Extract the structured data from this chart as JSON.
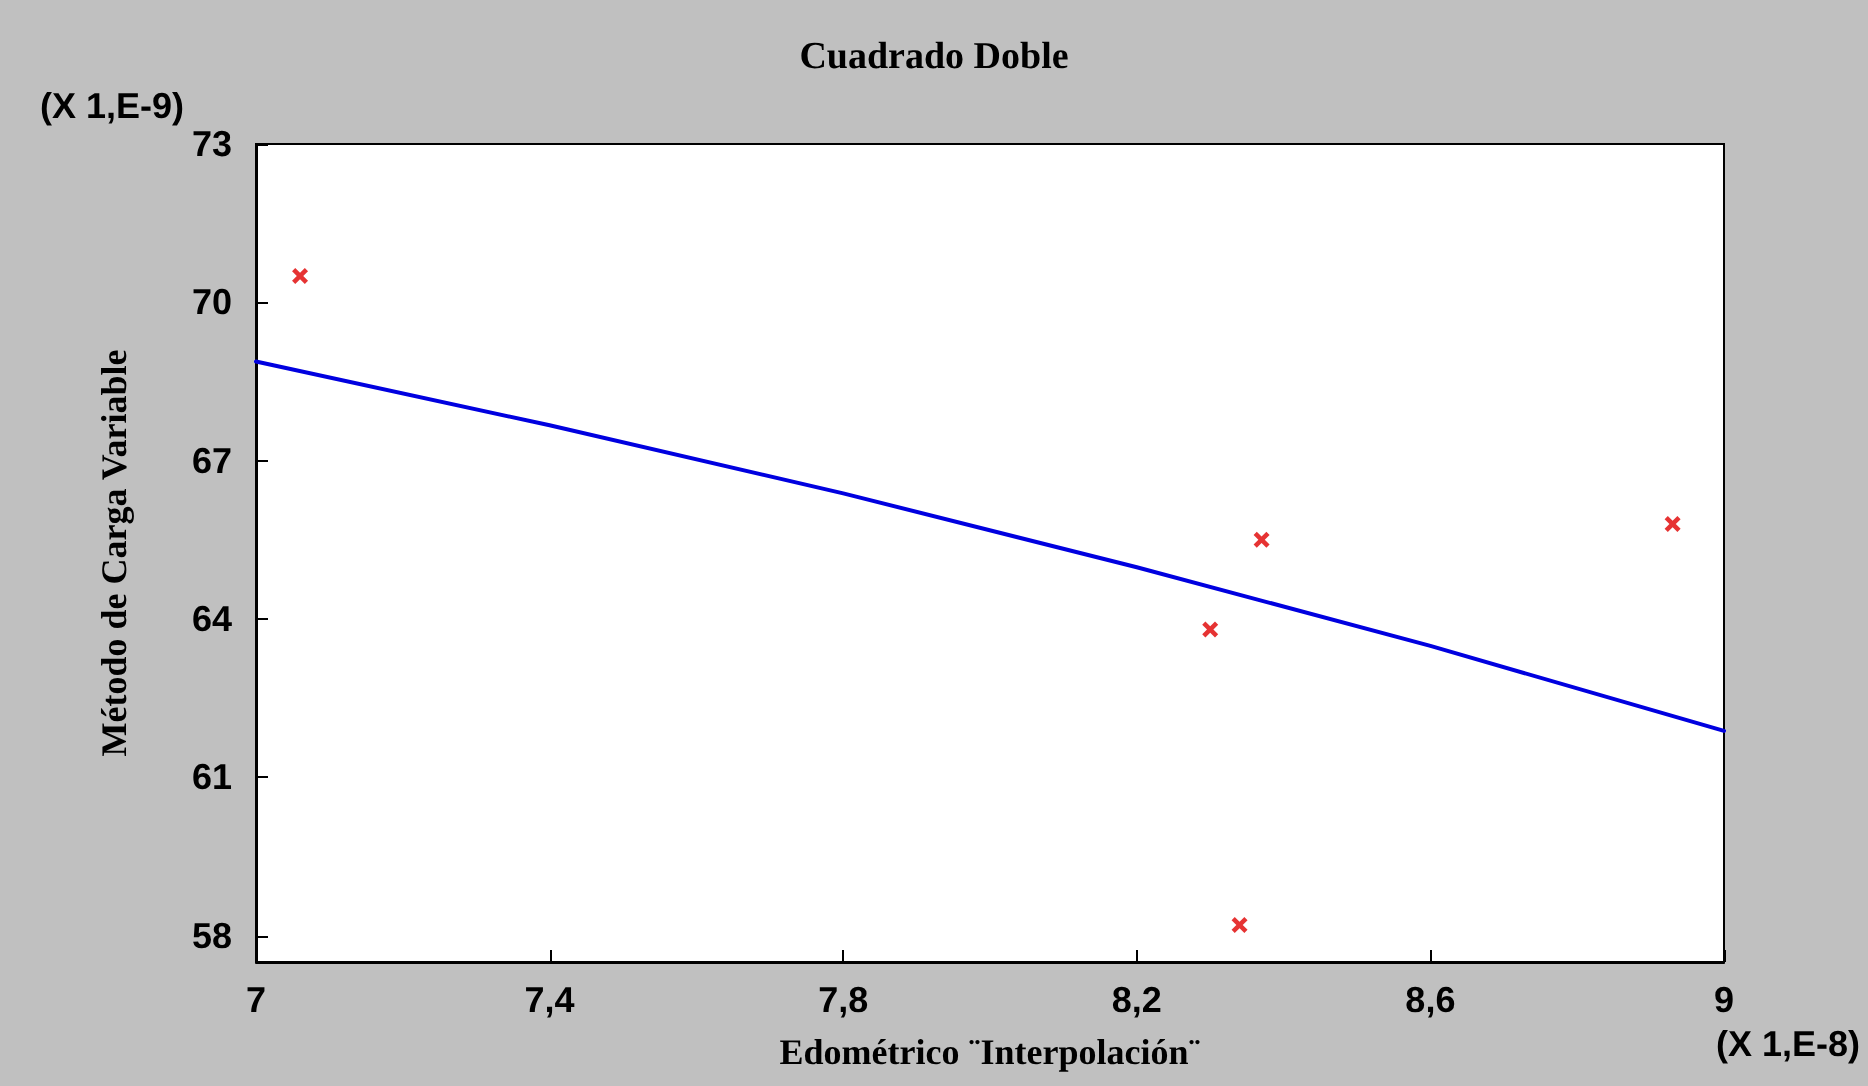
{
  "chart_data": {
    "type": "scatter",
    "title": "Cuadrado Doble",
    "xlabel": "Edométrico ¨Interpolación¨",
    "ylabel": "Método de Carga Variable",
    "annotations": [
      "(X 1,E-9)",
      "(X 1,E-8)"
    ],
    "xlim": [
      7,
      9
    ],
    "xticks": [
      7,
      {
        "value": 7.4,
        "label": "7,4"
      },
      {
        "value": 7.8,
        "label": "7,8"
      },
      {
        "value": 8.2,
        "label": "8,2"
      },
      {
        "value": 8.6,
        "label": "8,6"
      },
      9
    ],
    "ylim": [
      57.5,
      73
    ],
    "yticks": [
      58,
      61,
      64,
      67,
      70,
      73
    ],
    "grid": false,
    "marker": "cross",
    "series": [
      {
        "color": "#e00000",
        "x": [
          7.06,
          8.3,
          8.37,
          8.34,
          8.93
        ],
        "values": [
          70.5,
          63.8,
          65.5,
          58.2,
          65.8
        ]
      },
      {
        "type": "line",
        "color": "#0000e0",
        "line_style": "solid",
        "marker": "none",
        "x": [
          7,
          7.4,
          7.8,
          8.2,
          8.6,
          9
        ],
        "values": [
          68.88,
          67.67,
          66.38,
          64.98,
          63.49,
          61.88
        ]
      }
    ]
  }
}
